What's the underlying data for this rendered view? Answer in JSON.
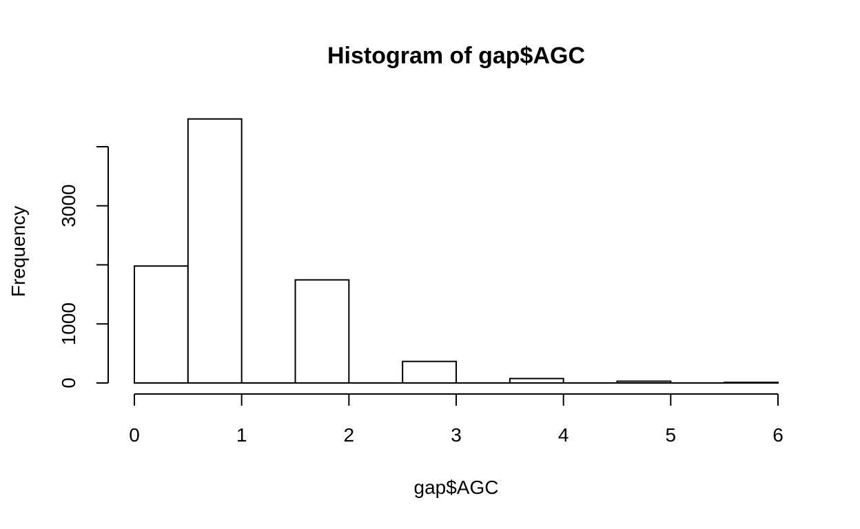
{
  "chart_data": {
    "type": "bar",
    "title": "Histogram of gap$AGC",
    "xlabel": "gap$AGC",
    "ylabel": "Frequency",
    "xlim": [
      0,
      6
    ],
    "ylim": [
      0,
      4000
    ],
    "x_ticks": [
      0,
      1,
      2,
      3,
      4,
      5,
      6
    ],
    "y_ticks": [
      0,
      1000,
      2000,
      3000,
      4000
    ],
    "y_tick_labels": [
      "0",
      "1000",
      "",
      "3000",
      ""
    ],
    "bins": [
      {
        "x0": 0.0,
        "x1": 0.5,
        "value": 1980
      },
      {
        "x0": 0.5,
        "x1": 1.0,
        "value": 4470
      },
      {
        "x0": 1.0,
        "x1": 1.5,
        "value": 0
      },
      {
        "x0": 1.5,
        "x1": 2.0,
        "value": 1745
      },
      {
        "x0": 2.0,
        "x1": 2.5,
        "value": 0
      },
      {
        "x0": 2.5,
        "x1": 3.0,
        "value": 365
      },
      {
        "x0": 3.0,
        "x1": 3.5,
        "value": 0
      },
      {
        "x0": 3.5,
        "x1": 4.0,
        "value": 75
      },
      {
        "x0": 4.0,
        "x1": 4.5,
        "value": 0
      },
      {
        "x0": 4.5,
        "x1": 5.0,
        "value": 30
      },
      {
        "x0": 5.0,
        "x1": 5.5,
        "value": 0
      },
      {
        "x0": 5.5,
        "x1": 6.0,
        "value": 10
      }
    ],
    "grid": false,
    "colors": {
      "bar_fill": "#ffffff",
      "bar_stroke": "#000000"
    }
  }
}
